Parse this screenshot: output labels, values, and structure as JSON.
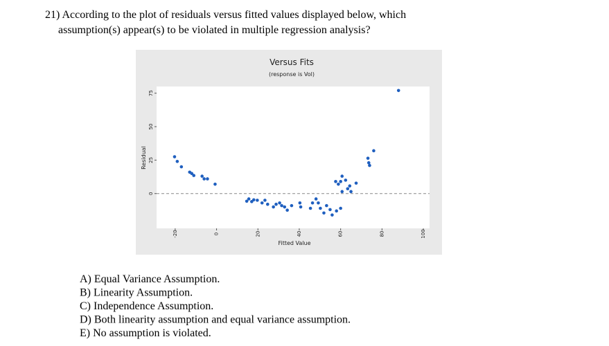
{
  "question": {
    "lines": [
      "21) According to the plot of residuals versus fitted values displayed below, which",
      "assumption(s) appear(s) to be violated in multiple regression analysis?"
    ]
  },
  "choices": [
    "A) Equal Variance Assumption.",
    "B) Linearity Assumption.",
    "C) Independence Assumption.",
    "D) Both linearity assumption and equal variance assumption.",
    "E) No assumption is violated."
  ],
  "chart_data": {
    "type": "scatter",
    "title": "Versus Fits",
    "subtitle": "(response is Vol)",
    "x_label": "Fitted Value",
    "y_label": "Residual",
    "x": [
      -20.3,
      -19,
      -17,
      -13,
      -12,
      -11,
      -7,
      -6,
      -4.4,
      -0.7,
      14.6,
      15.6,
      17,
      18,
      19.7,
      22,
      23.4,
      24.7,
      27.5,
      28.8,
      30.5,
      31.5,
      32.9,
      34.2,
      36.3,
      40.3,
      40.7,
      45.4,
      46.4,
      48.1,
      49.2,
      50.2,
      51.9,
      53.2,
      54.9,
      55.9,
      58,
      60,
      57.6,
      58.9,
      60,
      60.7,
      62.4,
      63.4,
      64.4,
      65,
      67.5,
      60.7,
      73.2,
      73.6,
      74,
      76,
      88
    ],
    "values": [
      27.5,
      24,
      20,
      16,
      15,
      13.5,
      13,
      11,
      11,
      7,
      -5.7,
      -4,
      -6,
      -4.7,
      -5,
      -7,
      -5,
      -8,
      -10,
      -8,
      -7,
      -9,
      -10,
      -12.4,
      -9,
      -7,
      -10,
      -11,
      -7,
      -4,
      -7,
      -11,
      -14.5,
      -9,
      -12,
      -16,
      -13,
      -11,
      9,
      7,
      9,
      13,
      10,
      3.6,
      5.7,
      1.5,
      7.8,
      1.5,
      26.4,
      23,
      21,
      32,
      77
    ],
    "color": "#1f5fbf",
    "hline": 0,
    "xlim": [
      -29,
      103
    ],
    "ylim": [
      -26,
      80
    ],
    "xticks": [
      -20,
      0,
      20,
      40,
      60,
      80,
      100
    ],
    "yticks": [
      0,
      25,
      50,
      75
    ]
  }
}
